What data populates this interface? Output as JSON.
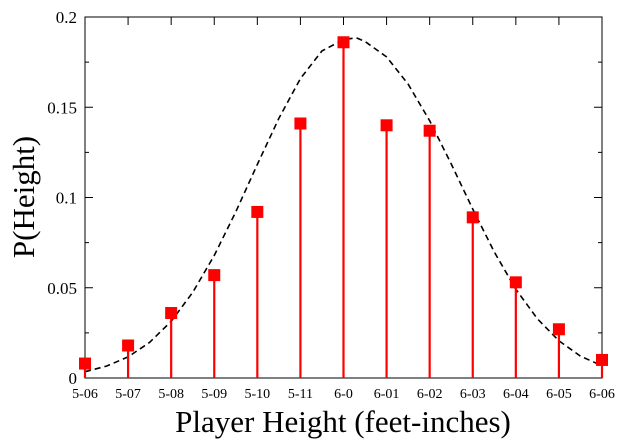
{
  "chart_data": {
    "type": "scatter",
    "title": "",
    "xlabel": "Player Height (feet-inches)",
    "ylabel": "P(Height)",
    "categories": [
      "5-06",
      "5-07",
      "5-08",
      "5-09",
      "5-10",
      "5-11",
      "6-0",
      "6-01",
      "6-02",
      "6-03",
      "6-04",
      "6-05",
      "6-06"
    ],
    "ylim": [
      0,
      0.2
    ],
    "yticks": [
      {
        "value": 0,
        "label": "0"
      },
      {
        "value": 0.05,
        "label": "0.05"
      },
      {
        "value": 0.1,
        "label": "0.1"
      },
      {
        "value": 0.15,
        "label": "0.15"
      },
      {
        "value": 0.2,
        "label": "0.2"
      }
    ],
    "series": [
      {
        "values": [
          0.008,
          0.018,
          0.036,
          0.057,
          0.092,
          0.141,
          0.186,
          0.14,
          0.137,
          0.089,
          0.053,
          0.027,
          0.01
        ],
        "marker": "square",
        "color": "#ff0000",
        "stems": true
      },
      {
        "type": "line",
        "style": "dashed",
        "color": "#000000",
        "x": [
          0,
          0.5,
          1,
          1.5,
          2,
          2.5,
          3,
          3.5,
          4,
          4.5,
          5,
          5.5,
          6,
          6.3,
          6.5,
          7,
          7.5,
          8,
          8.5,
          9,
          9.5,
          10,
          10.5,
          11,
          11.5,
          12
        ],
        "values": [
          0.0035,
          0.0066,
          0.0117,
          0.0197,
          0.0314,
          0.0474,
          0.0679,
          0.0921,
          0.1183,
          0.1439,
          0.1659,
          0.1812,
          0.1875,
          0.1885,
          0.1864,
          0.1779,
          0.1628,
          0.1425,
          0.1186,
          0.0935,
          0.0698,
          0.0492,
          0.0328,
          0.0206,
          0.0121,
          0.0068
        ]
      }
    ],
    "grid": false,
    "legend": "none"
  }
}
